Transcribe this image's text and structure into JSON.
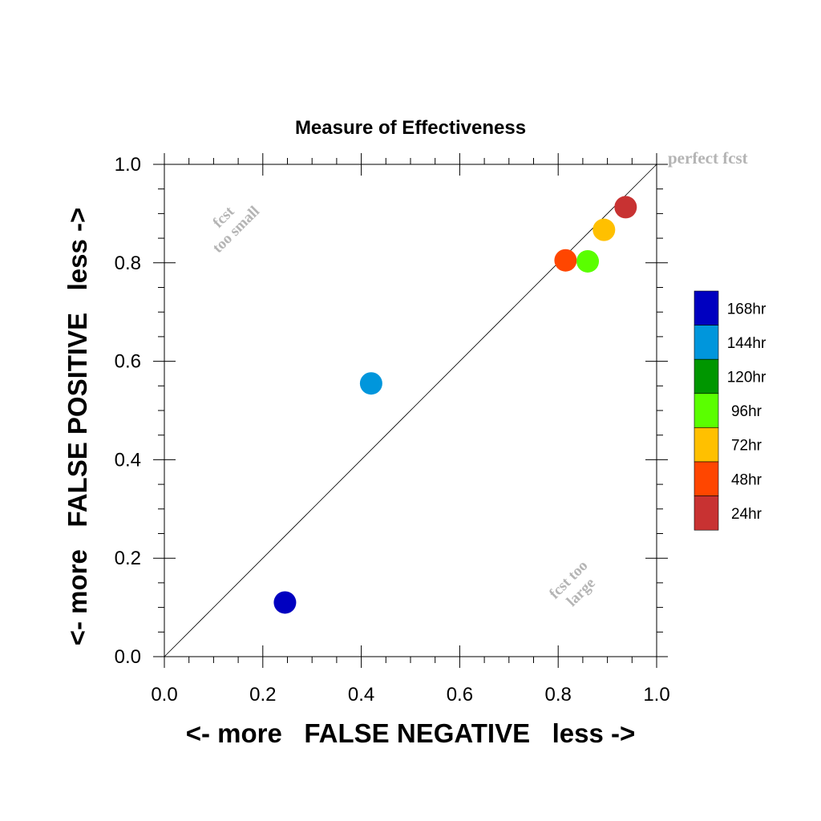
{
  "chart_data": {
    "type": "scatter",
    "title": "Measure of Effectiveness",
    "xlabel": "<- more   FALSE NEGATIVE   less ->",
    "ylabel": "<- more   FALSE POSITIVE   less ->",
    "xlim": [
      0.0,
      1.0
    ],
    "ylim": [
      0.0,
      1.0
    ],
    "x_ticks": [
      0.0,
      0.2,
      0.4,
      0.6,
      0.8,
      1.0
    ],
    "y_ticks": [
      0.0,
      0.2,
      0.4,
      0.6,
      0.8,
      1.0
    ],
    "x_tick_labels": [
      "0.0",
      "0.2",
      "0.4",
      "0.6",
      "0.8",
      "1.0"
    ],
    "y_tick_labels": [
      "0.0",
      "0.2",
      "0.4",
      "0.6",
      "0.8",
      "1.0"
    ],
    "grid": false,
    "reference_line": "diagonal y = x",
    "annotations": {
      "perfect": "perfect fcst",
      "small_line1": "fcst",
      "small_line2": "too small",
      "large_line1": "fcst too",
      "large_line2": "large"
    },
    "legend_placement": "right",
    "legend": [
      {
        "label": "168hr",
        "color": "#0000c0"
      },
      {
        "label": "144hr",
        "color": "#0096dc"
      },
      {
        "label": "120hr",
        "color": "#009600"
      },
      {
        "label": "96hr",
        "color": "#5aff00"
      },
      {
        "label": "72hr",
        "color": "#ffc000"
      },
      {
        "label": "48hr",
        "color": "#ff4600"
      },
      {
        "label": "24hr",
        "color": "#c83232"
      }
    ],
    "points": [
      {
        "label": "168hr",
        "x": 0.245,
        "y": 0.11,
        "color": "#0000c0"
      },
      {
        "label": "144hr",
        "x": 0.42,
        "y": 0.555,
        "color": "#0096dc"
      },
      {
        "label": "48hr",
        "x": 0.815,
        "y": 0.805,
        "color": "#ff4600"
      },
      {
        "label": "96hr",
        "x": 0.86,
        "y": 0.803,
        "color": "#5aff00"
      },
      {
        "label": "72hr",
        "x": 0.893,
        "y": 0.867,
        "color": "#ffc000"
      },
      {
        "label": "24hr",
        "x": 0.937,
        "y": 0.913,
        "color": "#c83232"
      }
    ]
  }
}
